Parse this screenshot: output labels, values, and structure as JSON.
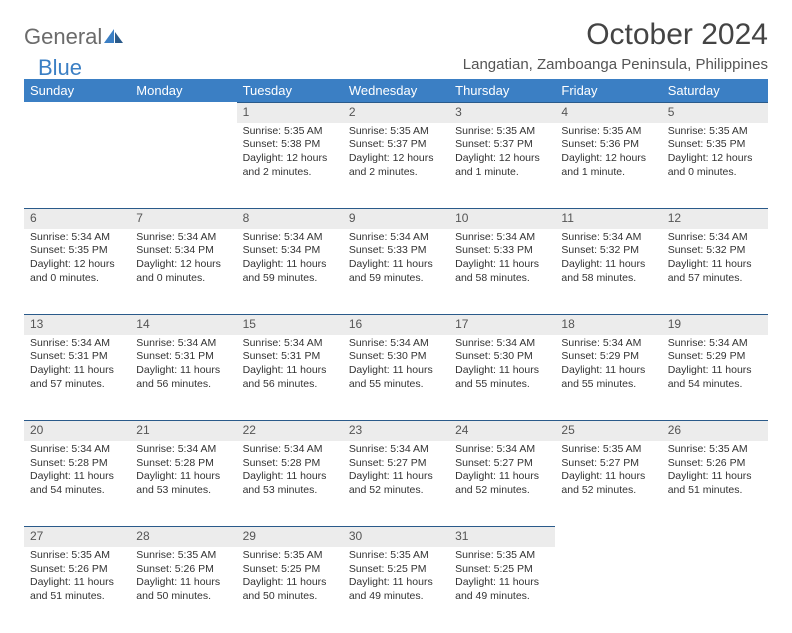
{
  "logo": {
    "part1": "General",
    "part2": "Blue"
  },
  "title": "October 2024",
  "location": "Langatian, Zamboanga Peninsula, Philippines",
  "colors": {
    "header_bg": "#3b7fc4",
    "header_text": "#ffffff",
    "daynum_bg": "#ececec",
    "body_text": "#333333",
    "logo_gray": "#6b6b6b",
    "logo_blue": "#3b7fc4"
  },
  "weekdays": [
    "Sunday",
    "Monday",
    "Tuesday",
    "Wednesday",
    "Thursday",
    "Friday",
    "Saturday"
  ],
  "weeks": [
    [
      null,
      null,
      {
        "n": "1",
        "sr": "Sunrise: 5:35 AM",
        "ss": "Sunset: 5:38 PM",
        "dl1": "Daylight: 12 hours",
        "dl2": "and 2 minutes."
      },
      {
        "n": "2",
        "sr": "Sunrise: 5:35 AM",
        "ss": "Sunset: 5:37 PM",
        "dl1": "Daylight: 12 hours",
        "dl2": "and 2 minutes."
      },
      {
        "n": "3",
        "sr": "Sunrise: 5:35 AM",
        "ss": "Sunset: 5:37 PM",
        "dl1": "Daylight: 12 hours",
        "dl2": "and 1 minute."
      },
      {
        "n": "4",
        "sr": "Sunrise: 5:35 AM",
        "ss": "Sunset: 5:36 PM",
        "dl1": "Daylight: 12 hours",
        "dl2": "and 1 minute."
      },
      {
        "n": "5",
        "sr": "Sunrise: 5:35 AM",
        "ss": "Sunset: 5:35 PM",
        "dl1": "Daylight: 12 hours",
        "dl2": "and 0 minutes."
      }
    ],
    [
      {
        "n": "6",
        "sr": "Sunrise: 5:34 AM",
        "ss": "Sunset: 5:35 PM",
        "dl1": "Daylight: 12 hours",
        "dl2": "and 0 minutes."
      },
      {
        "n": "7",
        "sr": "Sunrise: 5:34 AM",
        "ss": "Sunset: 5:34 PM",
        "dl1": "Daylight: 12 hours",
        "dl2": "and 0 minutes."
      },
      {
        "n": "8",
        "sr": "Sunrise: 5:34 AM",
        "ss": "Sunset: 5:34 PM",
        "dl1": "Daylight: 11 hours",
        "dl2": "and 59 minutes."
      },
      {
        "n": "9",
        "sr": "Sunrise: 5:34 AM",
        "ss": "Sunset: 5:33 PM",
        "dl1": "Daylight: 11 hours",
        "dl2": "and 59 minutes."
      },
      {
        "n": "10",
        "sr": "Sunrise: 5:34 AM",
        "ss": "Sunset: 5:33 PM",
        "dl1": "Daylight: 11 hours",
        "dl2": "and 58 minutes."
      },
      {
        "n": "11",
        "sr": "Sunrise: 5:34 AM",
        "ss": "Sunset: 5:32 PM",
        "dl1": "Daylight: 11 hours",
        "dl2": "and 58 minutes."
      },
      {
        "n": "12",
        "sr": "Sunrise: 5:34 AM",
        "ss": "Sunset: 5:32 PM",
        "dl1": "Daylight: 11 hours",
        "dl2": "and 57 minutes."
      }
    ],
    [
      {
        "n": "13",
        "sr": "Sunrise: 5:34 AM",
        "ss": "Sunset: 5:31 PM",
        "dl1": "Daylight: 11 hours",
        "dl2": "and 57 minutes."
      },
      {
        "n": "14",
        "sr": "Sunrise: 5:34 AM",
        "ss": "Sunset: 5:31 PM",
        "dl1": "Daylight: 11 hours",
        "dl2": "and 56 minutes."
      },
      {
        "n": "15",
        "sr": "Sunrise: 5:34 AM",
        "ss": "Sunset: 5:31 PM",
        "dl1": "Daylight: 11 hours",
        "dl2": "and 56 minutes."
      },
      {
        "n": "16",
        "sr": "Sunrise: 5:34 AM",
        "ss": "Sunset: 5:30 PM",
        "dl1": "Daylight: 11 hours",
        "dl2": "and 55 minutes."
      },
      {
        "n": "17",
        "sr": "Sunrise: 5:34 AM",
        "ss": "Sunset: 5:30 PM",
        "dl1": "Daylight: 11 hours",
        "dl2": "and 55 minutes."
      },
      {
        "n": "18",
        "sr": "Sunrise: 5:34 AM",
        "ss": "Sunset: 5:29 PM",
        "dl1": "Daylight: 11 hours",
        "dl2": "and 55 minutes."
      },
      {
        "n": "19",
        "sr": "Sunrise: 5:34 AM",
        "ss": "Sunset: 5:29 PM",
        "dl1": "Daylight: 11 hours",
        "dl2": "and 54 minutes."
      }
    ],
    [
      {
        "n": "20",
        "sr": "Sunrise: 5:34 AM",
        "ss": "Sunset: 5:28 PM",
        "dl1": "Daylight: 11 hours",
        "dl2": "and 54 minutes."
      },
      {
        "n": "21",
        "sr": "Sunrise: 5:34 AM",
        "ss": "Sunset: 5:28 PM",
        "dl1": "Daylight: 11 hours",
        "dl2": "and 53 minutes."
      },
      {
        "n": "22",
        "sr": "Sunrise: 5:34 AM",
        "ss": "Sunset: 5:28 PM",
        "dl1": "Daylight: 11 hours",
        "dl2": "and 53 minutes."
      },
      {
        "n": "23",
        "sr": "Sunrise: 5:34 AM",
        "ss": "Sunset: 5:27 PM",
        "dl1": "Daylight: 11 hours",
        "dl2": "and 52 minutes."
      },
      {
        "n": "24",
        "sr": "Sunrise: 5:34 AM",
        "ss": "Sunset: 5:27 PM",
        "dl1": "Daylight: 11 hours",
        "dl2": "and 52 minutes."
      },
      {
        "n": "25",
        "sr": "Sunrise: 5:35 AM",
        "ss": "Sunset: 5:27 PM",
        "dl1": "Daylight: 11 hours",
        "dl2": "and 52 minutes."
      },
      {
        "n": "26",
        "sr": "Sunrise: 5:35 AM",
        "ss": "Sunset: 5:26 PM",
        "dl1": "Daylight: 11 hours",
        "dl2": "and 51 minutes."
      }
    ],
    [
      {
        "n": "27",
        "sr": "Sunrise: 5:35 AM",
        "ss": "Sunset: 5:26 PM",
        "dl1": "Daylight: 11 hours",
        "dl2": "and 51 minutes."
      },
      {
        "n": "28",
        "sr": "Sunrise: 5:35 AM",
        "ss": "Sunset: 5:26 PM",
        "dl1": "Daylight: 11 hours",
        "dl2": "and 50 minutes."
      },
      {
        "n": "29",
        "sr": "Sunrise: 5:35 AM",
        "ss": "Sunset: 5:25 PM",
        "dl1": "Daylight: 11 hours",
        "dl2": "and 50 minutes."
      },
      {
        "n": "30",
        "sr": "Sunrise: 5:35 AM",
        "ss": "Sunset: 5:25 PM",
        "dl1": "Daylight: 11 hours",
        "dl2": "and 49 minutes."
      },
      {
        "n": "31",
        "sr": "Sunrise: 5:35 AM",
        "ss": "Sunset: 5:25 PM",
        "dl1": "Daylight: 11 hours",
        "dl2": "and 49 minutes."
      },
      null,
      null
    ]
  ]
}
